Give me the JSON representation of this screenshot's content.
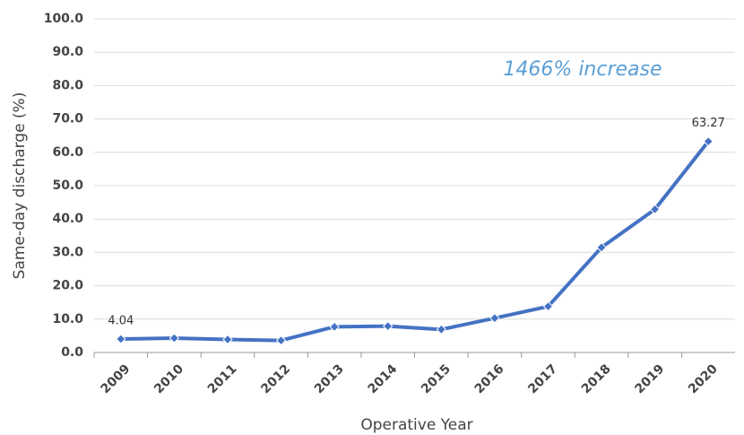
{
  "chart_data": {
    "type": "line",
    "x_label": "Operative Year",
    "y_label": "Same-day discharge (%)",
    "annotation": "1466% increase",
    "categories": [
      "2009",
      "2010",
      "2011",
      "2012",
      "2013",
      "2014",
      "2015",
      "2016",
      "2017",
      "2018",
      "2019",
      "2020"
    ],
    "values": [
      4.04,
      4.3,
      3.9,
      3.6,
      7.7,
      7.9,
      6.9,
      10.3,
      13.8,
      31.5,
      42.9,
      63.27
    ],
    "value_labels": [
      "4.04",
      null,
      null,
      null,
      null,
      null,
      null,
      null,
      null,
      null,
      null,
      "63.27"
    ],
    "color": "#4472c4",
    "ylim": [
      0,
      100
    ],
    "yticks": [
      {
        "value": 0,
        "label": "0.0"
      },
      {
        "value": 10,
        "label": "10.0"
      },
      {
        "value": 20,
        "label": "20.0"
      },
      {
        "value": 30,
        "label": "30.0"
      },
      {
        "value": 40,
        "label": "40.0"
      },
      {
        "value": 50,
        "label": "50.0"
      },
      {
        "value": 60,
        "label": "60.0"
      },
      {
        "value": 70,
        "label": "70.0"
      },
      {
        "value": 80,
        "label": "80.0"
      },
      {
        "value": 90,
        "label": "90.0"
      },
      {
        "value": 100,
        "label": "100.0"
      }
    ],
    "grid": true
  }
}
